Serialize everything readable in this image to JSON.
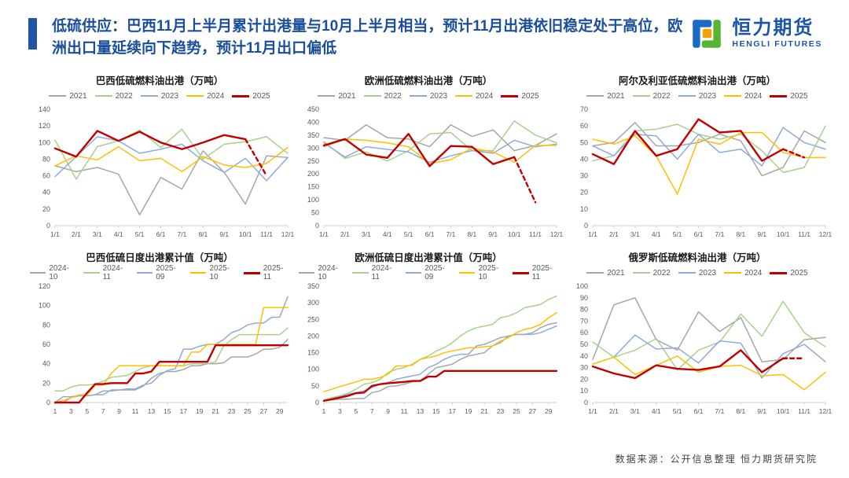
{
  "header": {
    "title": "低硫供应：巴西11月上半月累计出港量与10月上半月相当，预计11月出港依旧稳定处于高位，欧洲出口量延续向下趋势，预计11月出口偏低"
  },
  "logo": {
    "cn": "恒力期货",
    "en": "HENGLI FUTURES"
  },
  "footer": {
    "source": "数据来源：公开信息整理  恒力期货研究院"
  },
  "colors": {
    "accent_blue": "#1F55A5",
    "title_blue": "#1B4F9C",
    "logo_green": "#58B530",
    "logo_orange": "#F5A300",
    "series_2021": "#A6A6A6",
    "series_2022": "#A9D18E",
    "series_2023": "#8FAADC",
    "series_2024": "#FFC000",
    "series_2025": "#C00000"
  },
  "chart_data": [
    {
      "type": "line",
      "title": "巴西低硫燃料油出港（万吨）",
      "xlabel": "",
      "ylabel": "",
      "ylim": [
        0,
        140
      ],
      "ystep": 20,
      "x_tick_step": 1,
      "x_labels": [
        "1/1",
        "2/1",
        "3/1",
        "4/1",
        "5/1",
        "6/1",
        "7/1",
        "8/1",
        "9/1",
        "10/1",
        "11/1",
        "12/1"
      ],
      "series": [
        {
          "name": "2021",
          "color": "#A6A6A6",
          "values": [
            72,
            65,
            70,
            62,
            13,
            58,
            44,
            90,
            64,
            26,
            84,
            82
          ]
        },
        {
          "name": "2022",
          "color": "#A9D18E",
          "values": [
            103,
            56,
            95,
            102,
            115,
            94,
            116,
            80,
            98,
            101,
            107,
            87
          ]
        },
        {
          "name": "2023",
          "color": "#8FAADC",
          "values": [
            59,
            83,
            107,
            102,
            87,
            92,
            98,
            78,
            64,
            81,
            54,
            82
          ]
        },
        {
          "name": "2024",
          "color": "#FFC000",
          "values": [
            72,
            84,
            79,
            95,
            78,
            81,
            65,
            83,
            73,
            70,
            75,
            94
          ]
        },
        {
          "name": "2025",
          "color": "#C00000",
          "thick": true,
          "dash_from": 9,
          "values": [
            93,
            83,
            114,
            102,
            113,
            100,
            92,
            100,
            109,
            104,
            60
          ]
        }
      ]
    },
    {
      "type": "line",
      "title": "欧洲低硫燃料油出港（万吨）",
      "xlabel": "",
      "ylabel": "",
      "ylim": [
        0,
        450
      ],
      "ystep": 50,
      "x_tick_step": 1,
      "x_labels": [
        "1/1",
        "2/1",
        "3/1",
        "4/1",
        "5/1",
        "6/1",
        "7/1",
        "8/1",
        "9/1",
        "10/1",
        "11/1",
        "12/1"
      ],
      "series": [
        {
          "name": "2021",
          "color": "#A6A6A6",
          "values": [
            340,
            330,
            390,
            340,
            335,
            305,
            390,
            345,
            370,
            290,
            310,
            355
          ]
        },
        {
          "name": "2022",
          "color": "#A9D18E",
          "values": [
            325,
            260,
            285,
            250,
            290,
            355,
            360,
            290,
            290,
            405,
            350,
            320
          ]
        },
        {
          "name": "2023",
          "color": "#8FAADC",
          "values": [
            320,
            265,
            305,
            295,
            285,
            245,
            270,
            290,
            280,
            330,
            305,
            315
          ]
        },
        {
          "name": "2024",
          "color": "#FFC000",
          "values": [
            305,
            335,
            330,
            320,
            305,
            240,
            255,
            300,
            285,
            245,
            310,
            310
          ]
        },
        {
          "name": "2025",
          "color": "#C00000",
          "thick": true,
          "dash_from": 9,
          "values": [
            310,
            335,
            275,
            262,
            355,
            230,
            308,
            305,
            238,
            265,
            90
          ]
        }
      ]
    },
    {
      "type": "line",
      "title": "阿尔及利亚低硫燃料油出港（万吨）",
      "xlabel": "",
      "ylabel": "",
      "ylim": [
        0,
        70
      ],
      "ystep": 10,
      "x_tick_step": 1,
      "x_labels": [
        "1/1",
        "2/1",
        "3/1",
        "4/1",
        "5/1",
        "6/1",
        "7/1",
        "8/1",
        "9/1",
        "10/1",
        "11/1",
        "12/1"
      ],
      "series": [
        {
          "name": "2021",
          "color": "#A6A6A6",
          "values": [
            48,
            50,
            62,
            48,
            48,
            50,
            55,
            51,
            30,
            35,
            57,
            50
          ]
        },
        {
          "name": "2022",
          "color": "#A9D18E",
          "values": [
            39,
            42,
            57,
            58,
            61,
            55,
            52,
            55,
            45,
            32,
            35,
            60
          ]
        },
        {
          "name": "2023",
          "color": "#8FAADC",
          "values": [
            48,
            42,
            55,
            54,
            40,
            55,
            44,
            46,
            36,
            59,
            50,
            46
          ]
        },
        {
          "name": "2024",
          "color": "#FFC000",
          "values": [
            52,
            49,
            54,
            42,
            19,
            52,
            49,
            56,
            56,
            44,
            41,
            41
          ]
        },
        {
          "name": "2025",
          "color": "#C00000",
          "thick": true,
          "dash_from": 9,
          "values": [
            43,
            37,
            57,
            42,
            46,
            64,
            56,
            57,
            39,
            46,
            41
          ]
        }
      ]
    },
    {
      "type": "line",
      "title": "巴西低硫日度出港累计值（万吨）",
      "xlabel": "",
      "ylabel": "",
      "ylim": [
        0,
        120
      ],
      "ystep": 20,
      "x_tick_step": 2,
      "x_labels": [
        "1",
        "2",
        "3",
        "4",
        "5",
        "6",
        "7",
        "8",
        "9",
        "10",
        "11",
        "12",
        "13",
        "14",
        "15",
        "16",
        "17",
        "18",
        "19",
        "20",
        "21",
        "22",
        "23",
        "24",
        "25",
        "26",
        "27",
        "28",
        "29",
        "30"
      ],
      "series": [
        {
          "name": "2024-10",
          "color": "#A6A6A6",
          "values": [
            0,
            0,
            5,
            7,
            7,
            8,
            12,
            12,
            13,
            13,
            13,
            17,
            25,
            30,
            32,
            32,
            34,
            38,
            38,
            40,
            40,
            41,
            47,
            47,
            47,
            50,
            55,
            55,
            57,
            65
          ]
        },
        {
          "name": "2024-11",
          "color": "#A9D18E",
          "values": [
            12,
            12,
            16,
            18,
            18,
            19,
            22,
            26,
            27,
            28,
            32,
            36,
            38,
            38,
            38,
            38,
            38,
            40,
            40,
            40,
            42,
            58,
            65,
            70,
            70,
            70,
            70,
            70,
            70,
            77
          ]
        },
        {
          "name": "2025-09",
          "color": "#8FAADC",
          "values": [
            0,
            6,
            6,
            7,
            7,
            8,
            8,
            13,
            13,
            14,
            14,
            18,
            20,
            28,
            33,
            35,
            55,
            55,
            58,
            60,
            60,
            65,
            72,
            75,
            80,
            82,
            82,
            88,
            88,
            109
          ]
        },
        {
          "name": "2025-10",
          "color": "#FFC000",
          "values": [
            0,
            2,
            5,
            8,
            8,
            18,
            18,
            30,
            38,
            38,
            38,
            38,
            38,
            38,
            38,
            38,
            38,
            52,
            52,
            60,
            60,
            60,
            60,
            60,
            60,
            60,
            98,
            98,
            98,
            98
          ]
        },
        {
          "name": "2025-11",
          "color": "#C00000",
          "thick": true,
          "values": [
            0,
            0,
            0,
            0,
            10,
            19,
            19,
            20,
            20,
            20,
            30,
            30,
            32,
            42,
            42,
            42,
            42,
            42,
            42,
            42,
            59,
            59,
            59,
            59,
            59,
            59,
            59,
            59,
            59,
            59
          ]
        }
      ]
    },
    {
      "type": "line",
      "title": "欧洲低硫日度出港累计值（万吨）",
      "xlabel": "",
      "ylabel": "",
      "ylim": [
        0,
        350
      ],
      "ystep": 50,
      "x_tick_step": 2,
      "x_labels": [
        "1",
        "2",
        "3",
        "4",
        "5",
        "6",
        "7",
        "8",
        "9",
        "10",
        "11",
        "12",
        "13",
        "14",
        "15",
        "16",
        "17",
        "18",
        "19",
        "20",
        "21",
        "22",
        "23",
        "24",
        "25",
        "26",
        "27",
        "28",
        "29",
        "30"
      ],
      "series": [
        {
          "name": "2024-10",
          "color": "#A6A6A6",
          "values": [
            5,
            8,
            10,
            10,
            12,
            12,
            30,
            35,
            48,
            50,
            55,
            62,
            65,
            85,
            105,
            110,
            115,
            130,
            140,
            145,
            150,
            170,
            180,
            200,
            205,
            205,
            210,
            225,
            235,
            240
          ]
        },
        {
          "name": "2024-11",
          "color": "#A9D18E",
          "values": [
            8,
            15,
            20,
            28,
            40,
            55,
            60,
            70,
            90,
            100,
            105,
            115,
            130,
            140,
            155,
            165,
            180,
            200,
            215,
            225,
            230,
            235,
            255,
            260,
            270,
            285,
            290,
            295,
            310,
            320
          ]
        },
        {
          "name": "2025-09",
          "color": "#8FAADC",
          "values": [
            5,
            10,
            18,
            25,
            30,
            35,
            45,
            55,
            60,
            70,
            75,
            80,
            85,
            105,
            115,
            130,
            140,
            145,
            145,
            170,
            175,
            185,
            195,
            200,
            205,
            205,
            205,
            210,
            220,
            230
          ]
        },
        {
          "name": "2025-10",
          "color": "#FFC000",
          "values": [
            33,
            40,
            48,
            55,
            62,
            70,
            70,
            75,
            85,
            110,
            110,
            112,
            130,
            135,
            140,
            150,
            155,
            160,
            165,
            165,
            168,
            170,
            185,
            195,
            210,
            220,
            225,
            235,
            255,
            270
          ]
        },
        {
          "name": "2025-11",
          "color": "#C00000",
          "thick": true,
          "values": [
            5,
            10,
            15,
            20,
            28,
            30,
            50,
            55,
            58,
            60,
            62,
            65,
            65,
            78,
            78,
            95,
            95,
            95,
            95,
            95,
            95,
            95,
            95,
            95,
            95,
            95,
            95,
            95,
            95,
            95
          ]
        }
      ]
    },
    {
      "type": "line",
      "title": "俄罗斯低硫燃料油出港（万吨）",
      "xlabel": "",
      "ylabel": "",
      "ylim": [
        0,
        100
      ],
      "ystep": 10,
      "x_tick_step": 1,
      "x_labels": [
        "1/1",
        "2/1",
        "3/1",
        "4/1",
        "5/1",
        "6/1",
        "7/1",
        "8/1",
        "9/1",
        "10/1",
        "11/1",
        "12/1"
      ],
      "series": [
        {
          "name": "2021",
          "color": "#A6A6A6",
          "values": [
            37,
            84,
            90,
            54,
            45,
            78,
            61,
            73,
            35,
            37,
            54,
            56
          ]
        },
        {
          "name": "2022",
          "color": "#A9D18E",
          "values": [
            52,
            39,
            45,
            55,
            28,
            45,
            52,
            76,
            57,
            87,
            60,
            48
          ]
        },
        {
          "name": "2023",
          "color": "#8FAADC",
          "values": [
            33,
            39,
            58,
            46,
            47,
            34,
            53,
            51,
            21,
            42,
            50,
            35
          ]
        },
        {
          "name": "2024",
          "color": "#FFC000",
          "values": [
            33,
            39,
            24,
            32,
            40,
            26,
            31,
            32,
            23,
            24,
            11,
            26
          ]
        },
        {
          "name": "2025",
          "color": "#C00000",
          "thick": true,
          "dash_from": 9,
          "values": [
            31,
            25,
            21,
            32,
            29,
            28,
            31,
            45,
            26,
            38,
            38
          ]
        }
      ]
    }
  ]
}
